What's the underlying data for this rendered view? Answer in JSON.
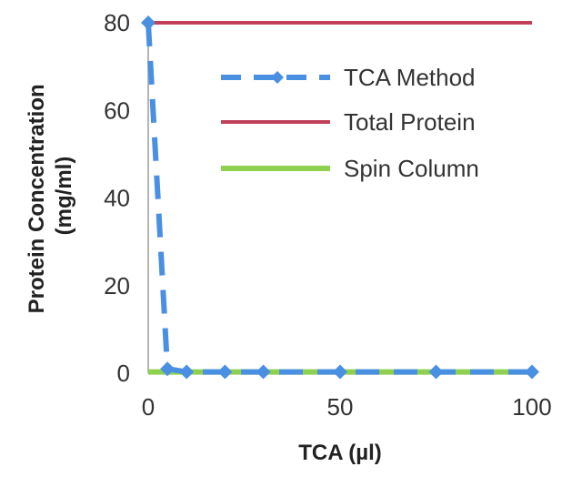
{
  "chart_data": {
    "type": "line",
    "title": "",
    "xlabel": "TCA (µl)",
    "ylabel_lines": [
      "Protein Concentration",
      "(mg/ml)"
    ],
    "xlim": [
      0,
      100
    ],
    "ylim": [
      0,
      80
    ],
    "xticks": [
      "0",
      "50",
      "100"
    ],
    "yticks": [
      "0",
      "20",
      "40",
      "60",
      "80"
    ],
    "grid": false,
    "legend_position": "top-right",
    "series": [
      {
        "name": "TCA Method",
        "color": "#4a90e2",
        "style": "dashed",
        "marker": "diamond",
        "x": [
          0,
          5,
          10,
          20,
          30,
          50,
          75,
          100
        ],
        "y": [
          80,
          1,
          0.3,
          0.3,
          0.3,
          0.3,
          0.3,
          0.3
        ]
      },
      {
        "name": "Total Protein",
        "color": "#c0405a",
        "style": "solid",
        "marker": "none",
        "x": [
          0,
          100
        ],
        "y": [
          80,
          80
        ]
      },
      {
        "name": "Spin Column",
        "color": "#8fd14f",
        "style": "solid",
        "marker": "none",
        "x": [
          0,
          5,
          10,
          20,
          30,
          50,
          75,
          100
        ],
        "y": [
          0.3,
          0.3,
          0.3,
          0.3,
          0.3,
          0.3,
          0.3,
          0.3
        ]
      }
    ]
  }
}
